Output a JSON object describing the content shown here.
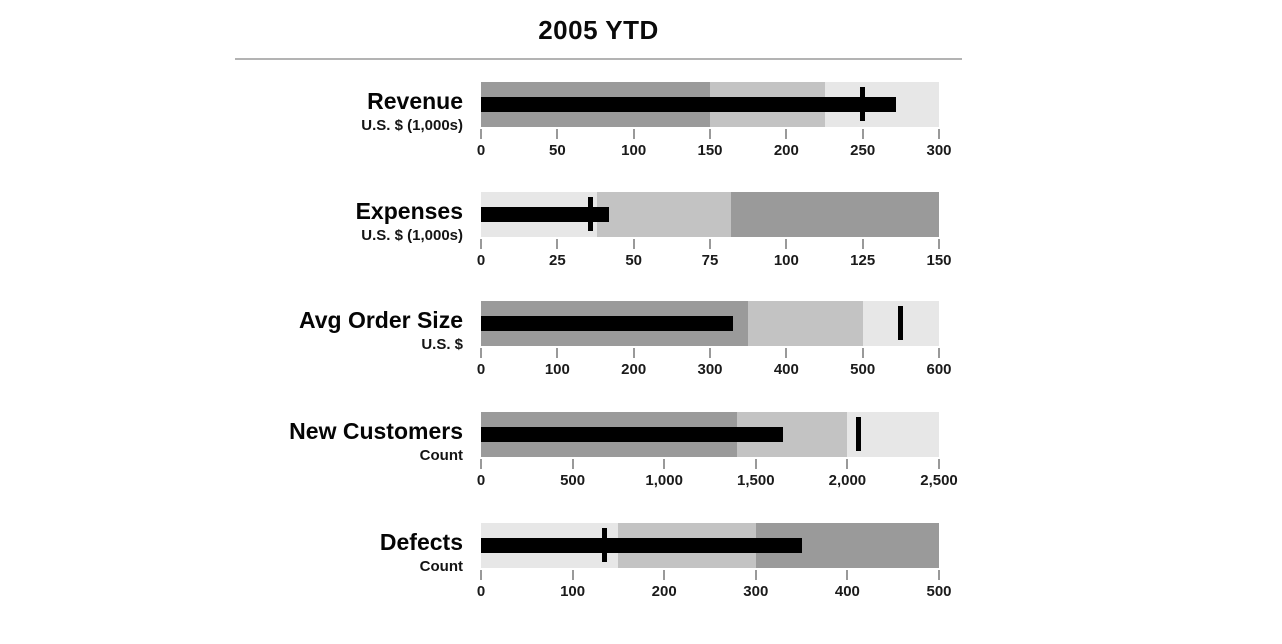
{
  "title": "2005 YTD",
  "colors": {
    "band_dark": "#9a9a9a",
    "band_medium": "#c3c3c3",
    "band_light": "#e7e7e7",
    "measure_bar": "#000000",
    "target_marker": "#000000",
    "axis_tick": "#999999",
    "axis_label": "#1a1a1a",
    "divider": "#b3b3b3",
    "title_text": "#0a0a0a"
  },
  "chart_data": {
    "type": "bar",
    "subtype": "bullet-graph",
    "title": "2005 YTD",
    "orientation": "horizontal",
    "grid": false,
    "legend": false,
    "charts": [
      {
        "name": "Revenue",
        "unit": "U.S. $ (1,000s)",
        "measure": 272,
        "target": 250,
        "axis": {
          "min": 0,
          "max": 300,
          "ticks": [
            {
              "label": "0",
              "value": 0
            },
            {
              "label": "50",
              "value": 50
            },
            {
              "label": "100",
              "value": 100
            },
            {
              "label": "150",
              "value": 150
            },
            {
              "label": "200",
              "value": 200
            },
            {
              "label": "250",
              "value": 250
            },
            {
              "label": "300",
              "value": 300
            }
          ]
        },
        "ranges": [
          {
            "level": "dark",
            "from": 0,
            "to": 150
          },
          {
            "level": "medium",
            "from": 150,
            "to": 225
          },
          {
            "level": "light",
            "from": 225,
            "to": 300
          }
        ]
      },
      {
        "name": "Expenses",
        "unit": "U.S. $ (1,000s)",
        "measure": 42,
        "target": 36,
        "axis": {
          "min": 0,
          "max": 150,
          "ticks": [
            {
              "label": "0",
              "value": 0
            },
            {
              "label": "25",
              "value": 25
            },
            {
              "label": "50",
              "value": 50
            },
            {
              "label": "75",
              "value": 75
            },
            {
              "label": "100",
              "value": 100
            },
            {
              "label": "125",
              "value": 125
            },
            {
              "label": "150",
              "value": 150
            }
          ]
        },
        "ranges": [
          {
            "level": "light",
            "from": 0,
            "to": 38
          },
          {
            "level": "medium",
            "from": 38,
            "to": 82
          },
          {
            "level": "dark",
            "from": 82,
            "to": 150
          }
        ]
      },
      {
        "name": "Avg Order Size",
        "unit": "U.S. $",
        "measure": 330,
        "target": 550,
        "axis": {
          "min": 0,
          "max": 600,
          "ticks": [
            {
              "label": "0",
              "value": 0
            },
            {
              "label": "100",
              "value": 100
            },
            {
              "label": "200",
              "value": 200
            },
            {
              "label": "300",
              "value": 300
            },
            {
              "label": "400",
              "value": 400
            },
            {
              "label": "500",
              "value": 500
            },
            {
              "label": "600",
              "value": 600
            }
          ]
        },
        "ranges": [
          {
            "level": "dark",
            "from": 0,
            "to": 350
          },
          {
            "level": "medium",
            "from": 350,
            "to": 500
          },
          {
            "level": "light",
            "from": 500,
            "to": 600
          }
        ]
      },
      {
        "name": "New Customers",
        "unit": "Count",
        "measure": 1650,
        "target": 2060,
        "axis": {
          "min": 0,
          "max": 2500,
          "ticks": [
            {
              "label": "0",
              "value": 0
            },
            {
              "label": "500",
              "value": 500
            },
            {
              "label": "1,000",
              "value": 1000
            },
            {
              "label": "1,500",
              "value": 1500
            },
            {
              "label": "2,000",
              "value": 2000
            },
            {
              "label": "2,500",
              "value": 2500
            }
          ]
        },
        "ranges": [
          {
            "level": "dark",
            "from": 0,
            "to": 1400
          },
          {
            "level": "medium",
            "from": 1400,
            "to": 2000
          },
          {
            "level": "light",
            "from": 2000,
            "to": 2500
          }
        ]
      },
      {
        "name": "Defects",
        "unit": "Count",
        "measure": 350,
        "target": 135,
        "axis": {
          "min": 0,
          "max": 500,
          "ticks": [
            {
              "label": "0",
              "value": 0
            },
            {
              "label": "100",
              "value": 100
            },
            {
              "label": "200",
              "value": 200
            },
            {
              "label": "300",
              "value": 300
            },
            {
              "label": "400",
              "value": 400
            },
            {
              "label": "500",
              "value": 500
            }
          ]
        },
        "ranges": [
          {
            "level": "light",
            "from": 0,
            "to": 150
          },
          {
            "level": "medium",
            "from": 150,
            "to": 300
          },
          {
            "level": "dark",
            "from": 300,
            "to": 500
          }
        ]
      }
    ]
  }
}
